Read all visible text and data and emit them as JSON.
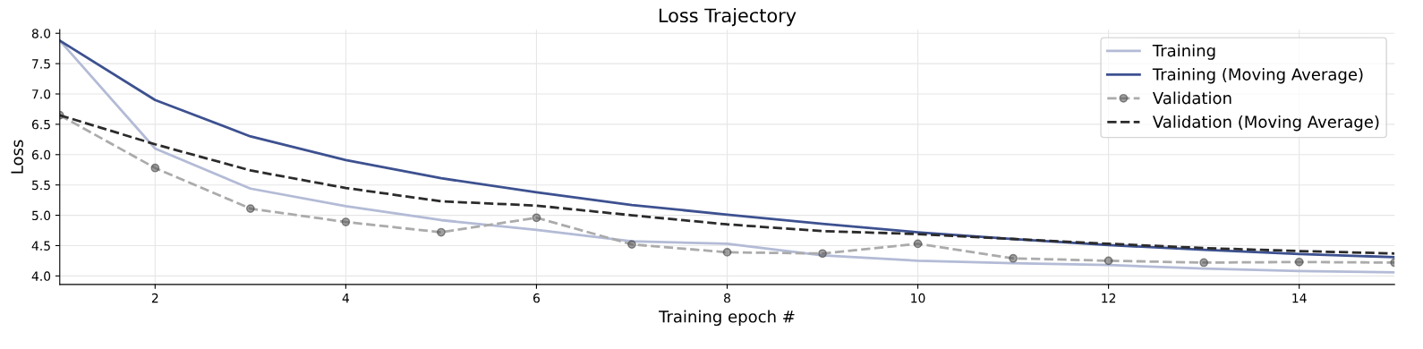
{
  "chart_data": {
    "type": "line",
    "title": "Loss Trajectory",
    "xlabel": "Training epoch #",
    "ylabel": "Loss",
    "x": [
      1,
      2,
      3,
      4,
      5,
      6,
      7,
      8,
      9,
      10,
      11,
      12,
      13,
      14,
      15
    ],
    "series": [
      {
        "name": "Training",
        "color": "#b3bbd6",
        "line_style": "solid",
        "marker": "none",
        "values": [
          7.88,
          6.1,
          5.44,
          5.15,
          4.92,
          4.76,
          4.57,
          4.53,
          4.34,
          4.25,
          4.21,
          4.18,
          4.12,
          4.08,
          4.06
        ]
      },
      {
        "name": "Training (Moving Average)",
        "color": "#3d5190",
        "line_style": "solid",
        "marker": "none",
        "values": [
          7.88,
          6.9,
          6.3,
          5.91,
          5.61,
          5.38,
          5.17,
          5.01,
          4.86,
          4.72,
          4.61,
          4.51,
          4.43,
          4.36,
          4.31
        ]
      },
      {
        "name": "Validation",
        "color": "#ababab",
        "line_style": "dashed",
        "marker": "circle",
        "values": [
          6.65,
          5.78,
          5.11,
          4.89,
          4.72,
          4.96,
          4.52,
          4.39,
          4.37,
          4.53,
          4.29,
          4.25,
          4.22,
          4.23,
          4.22
        ]
      },
      {
        "name": "Validation (Moving Average)",
        "color": "#2b2b2b",
        "line_style": "dashed",
        "marker": "none",
        "values": [
          6.65,
          6.17,
          5.74,
          5.45,
          5.23,
          5.16,
          5.0,
          4.85,
          4.74,
          4.69,
          4.61,
          4.53,
          4.46,
          4.41,
          4.37
        ]
      }
    ],
    "xlim": [
      1,
      15
    ],
    "xticks": [
      2,
      4,
      6,
      8,
      10,
      12,
      14
    ],
    "ylim": [
      3.86,
      8.06
    ],
    "yticks": [
      {
        "value": 4.0,
        "label": "4.0"
      },
      {
        "value": 4.5,
        "label": "4.5"
      },
      {
        "value": 5.0,
        "label": "5.0"
      },
      {
        "value": 5.5,
        "label": "5.5"
      },
      {
        "value": 6.0,
        "label": "6.0"
      },
      {
        "value": 6.5,
        "label": "6.5"
      },
      {
        "value": 7.0,
        "label": "7.0"
      },
      {
        "value": 7.5,
        "label": "7.5"
      },
      {
        "value": 8.0,
        "label": "8.0"
      }
    ],
    "grid": true,
    "legend": "top right"
  }
}
